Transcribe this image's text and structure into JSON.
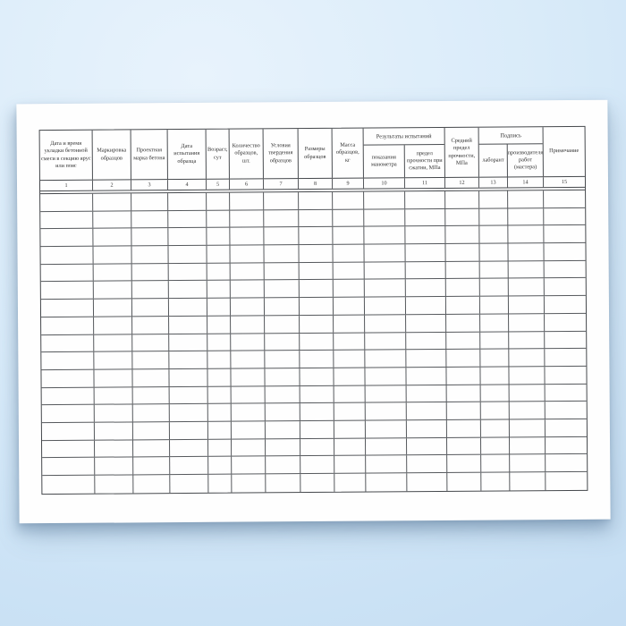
{
  "table": {
    "groups": [
      {
        "label": "Результаты испытаний",
        "spans_columns": [
          "10",
          "11"
        ]
      },
      {
        "label": "Подпись",
        "spans_columns": [
          "13",
          "14"
        ]
      }
    ],
    "columns": [
      {
        "num": "1",
        "label": "Дата и время укладки бетонной смеси в секцию ярус или пояс"
      },
      {
        "num": "2",
        "label": "Маркировка образцов"
      },
      {
        "num": "3",
        "label": "Проектная марка бетона"
      },
      {
        "num": "4",
        "label": "Дата испытания образца"
      },
      {
        "num": "5",
        "label": "Возраст, сут"
      },
      {
        "num": "6",
        "label": "Количество образцов, шт."
      },
      {
        "num": "7",
        "label": "Условия твердения образцов"
      },
      {
        "num": "8",
        "label": "Размеры образцов"
      },
      {
        "num": "9",
        "label": "Масса образцов, кг"
      },
      {
        "num": "10",
        "label": "показания манометра"
      },
      {
        "num": "11",
        "label": "предел прочности при сжатии, МПа"
      },
      {
        "num": "12",
        "label": "Средний предел прочности, МПа"
      },
      {
        "num": "13",
        "label": "лаборант"
      },
      {
        "num": "14",
        "label": "производителя работ (мастера)"
      },
      {
        "num": "15",
        "label": "Примечание"
      }
    ],
    "body_rows": 17,
    "body_cells_empty": true
  },
  "colors": {
    "background_blue": "#cfe4f6",
    "paper_white": "#fefefe",
    "line_gray": "#56595d",
    "line_dark": "#45484c",
    "text": "#2f2f2f"
  }
}
